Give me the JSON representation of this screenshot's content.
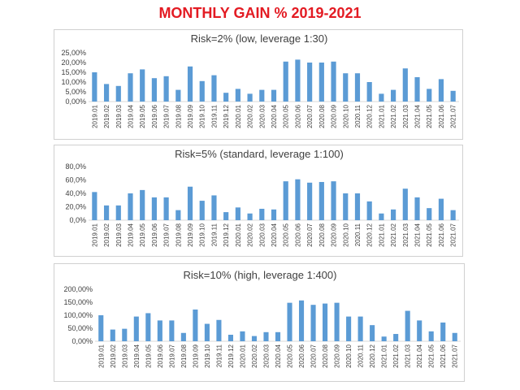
{
  "page_title": "MONTHLY GAIN % 2019-2021",
  "colors": {
    "title": "#e31b23",
    "bar": "#5b9bd5",
    "axis": "#d9d9d9",
    "text": "#404040"
  },
  "chart_data": [
    {
      "type": "bar",
      "title": "Risk=2% (low, leverage 1:30)",
      "categories": [
        "2019.01",
        "2019.02",
        "2019.03",
        "2019.04",
        "2019.05",
        "2019.06",
        "2019.07",
        "2019.08",
        "2019.09",
        "2019.10",
        "2019.11",
        "2019.12",
        "2020.01",
        "2020.02",
        "2020.03",
        "2020.04",
        "2020.05",
        "2020.06",
        "2020.07",
        "2020.08",
        "2020.09",
        "2020.10",
        "2020.11",
        "2020.12",
        "2021.01",
        "2021.02",
        "2021.03",
        "2021.04",
        "2021.05",
        "2021.06",
        "2021.07"
      ],
      "values": [
        15.0,
        9.0,
        8.0,
        14.5,
        16.5,
        12.0,
        13.0,
        6.0,
        18.0,
        10.5,
        13.5,
        4.5,
        6.5,
        4.0,
        6.0,
        6.0,
        20.5,
        21.5,
        20.0,
        20.0,
        20.5,
        14.5,
        14.5,
        10.0,
        4.0,
        6.0,
        17.0,
        12.5,
        6.5,
        11.5,
        5.5
      ],
      "yticks": [
        "0,00%",
        "5,00%",
        "10,00%",
        "15,00%",
        "20,00%",
        "25,00%"
      ],
      "ylim": [
        0,
        25
      ],
      "grid": false,
      "legend": "none"
    },
    {
      "type": "bar",
      "title": "Risk=5% (standard, leverage 1:100)",
      "categories": [
        "2019.01",
        "2019.02",
        "2019.03",
        "2019.04",
        "2019.05",
        "2019.06",
        "2019.07",
        "2019.08",
        "2019.09",
        "2019.10",
        "2019.11",
        "2019.12",
        "2020.01",
        "2020.02",
        "2020.03",
        "2020.04",
        "2020.05",
        "2020.06",
        "2020.07",
        "2020.08",
        "2020.09",
        "2020.10",
        "2020.11",
        "2020.12",
        "2021.01",
        "2021.02",
        "2021.03",
        "2021.04",
        "2021.05",
        "2021.06",
        "2021.07"
      ],
      "values": [
        42,
        22,
        22,
        40,
        45,
        34,
        34,
        15,
        50,
        29,
        37,
        12,
        19,
        10,
        17,
        16,
        58,
        61,
        56,
        57,
        58,
        40,
        40,
        28,
        10,
        16,
        47,
        34,
        18,
        32,
        15
      ],
      "yticks": [
        "0,0%",
        "20,0%",
        "40,0%",
        "60,0%",
        "80,0%"
      ],
      "ylim": [
        0,
        80
      ],
      "grid": false,
      "legend": "none"
    },
    {
      "type": "bar",
      "title": "Risk=10% (high, leverage 1:400)",
      "categories": [
        "2019.01",
        "2019.02",
        "2019.03",
        "2019.04",
        "2019.05",
        "2019.06",
        "2019.07",
        "2019.08",
        "2019.09",
        "2019.10",
        "2019.11",
        "2019.12",
        "2020.01",
        "2020.02",
        "2020.03",
        "2020.04",
        "2020.05",
        "2020.06",
        "2020.07",
        "2020.08",
        "2020.09",
        "2020.10",
        "2020.11",
        "2020.12",
        "2021.01",
        "2021.02",
        "2021.03",
        "2021.04",
        "2021.05",
        "2021.06",
        "2021.07"
      ],
      "values": [
        100,
        45,
        48,
        95,
        108,
        80,
        80,
        32,
        122,
        67,
        82,
        25,
        38,
        20,
        35,
        35,
        148,
        157,
        140,
        145,
        148,
        95,
        95,
        62,
        18,
        28,
        117,
        80,
        38,
        72,
        32
      ],
      "yticks": [
        "0,00%",
        "50,00%",
        "100,00%",
        "150,00%",
        "200,00%"
      ],
      "ylim": [
        0,
        200
      ],
      "grid": false,
      "legend": "none"
    }
  ]
}
